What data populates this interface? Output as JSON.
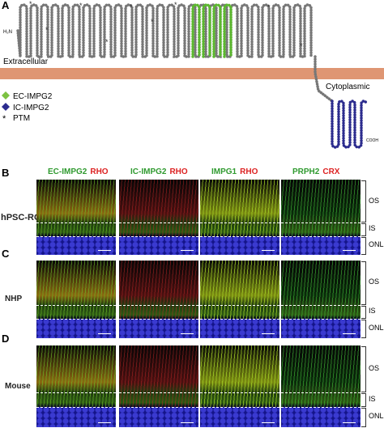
{
  "panel_a": {
    "label": "A",
    "n_terminus": "H₂N",
    "c_terminus": "COOH",
    "extracellular": "Extracellular",
    "cytoplasmic": "Cytoplasmic",
    "legend": [
      {
        "label": "EC-IMPG2"
      },
      {
        "label": "IC-IMPG2"
      },
      {
        "label": "PTM"
      }
    ]
  },
  "columns": [
    {
      "marker": "EC-IMPG2",
      "counterstain": "RHO"
    },
    {
      "marker": "IC-IMPG2",
      "counterstain": "RHO"
    },
    {
      "marker": "IMPG1",
      "counterstain": "RHO"
    },
    {
      "marker": "PRPH2",
      "counterstain": "CRX"
    }
  ],
  "rows": [
    {
      "label": "B",
      "sample": "hPSC-RO",
      "layers": [
        "OS",
        "IS",
        "ONL"
      ]
    },
    {
      "label": "C",
      "sample": "NHP",
      "layers": [
        "OS",
        "IS",
        "ONL"
      ]
    },
    {
      "label": "D",
      "sample": "Mouse",
      "layers": [
        "OS",
        "IS",
        "ONL"
      ]
    }
  ]
}
